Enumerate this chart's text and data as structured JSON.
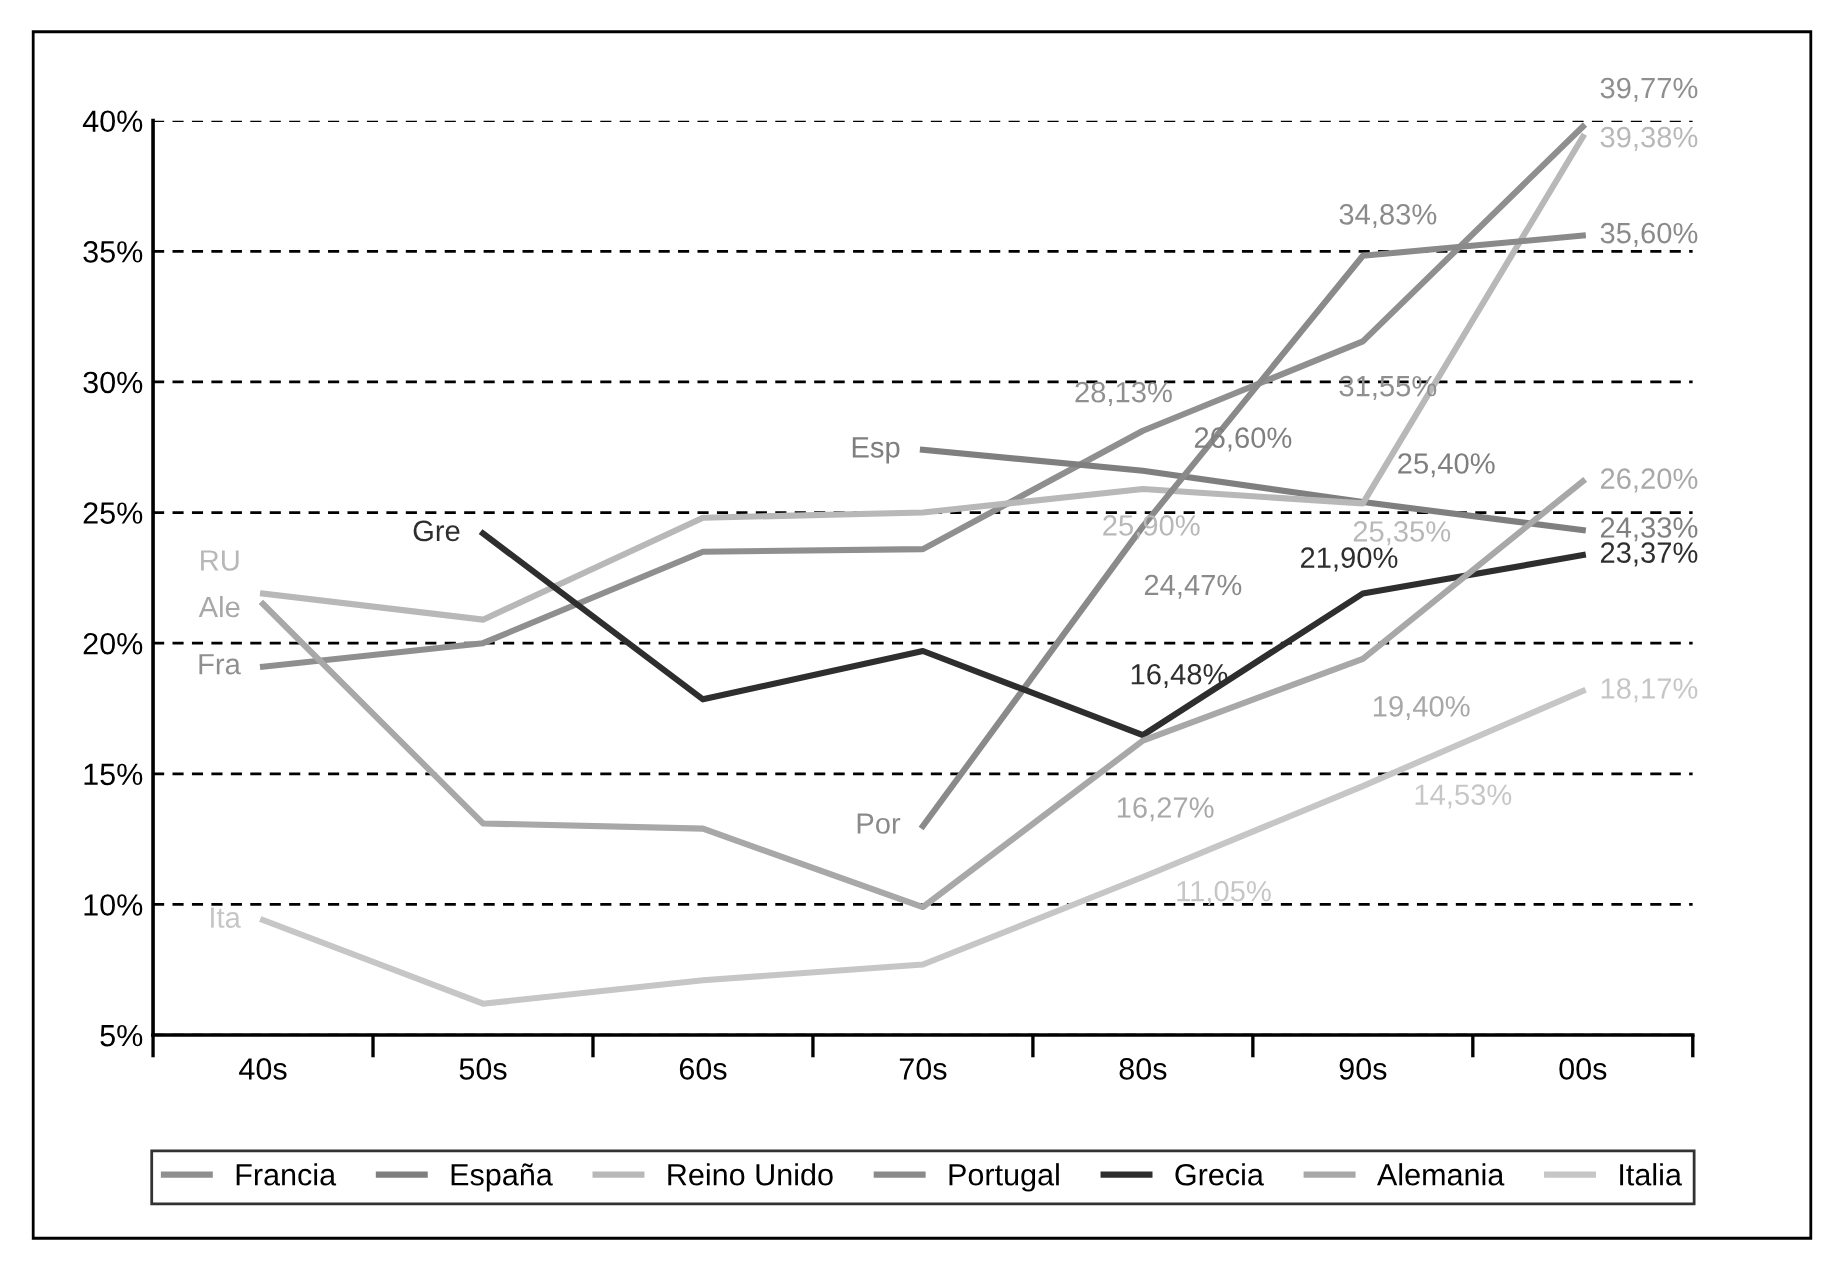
{
  "chart_data": {
    "type": "line",
    "categories": [
      "40s",
      "50s",
      "60s",
      "70s",
      "80s",
      "90s",
      "00s"
    ],
    "series": [
      {
        "name": "Francia",
        "color": "#8f8f8f",
        "values": [
          19.1,
          20.0,
          23.5,
          23.6,
          28.13,
          31.55,
          39.77
        ],
        "value_labels": [
          null,
          null,
          null,
          null,
          "28,13%",
          "31,55%",
          "39,77%"
        ]
      },
      {
        "name": "España",
        "color": "#7f7f7f",
        "values": [
          null,
          null,
          null,
          27.4,
          26.6,
          25.4,
          24.33
        ],
        "value_labels": [
          null,
          null,
          null,
          null,
          "26,60%",
          "25,40%",
          "24,33%"
        ]
      },
      {
        "name": "Reino Unido",
        "color": "#b8b8b8",
        "values": [
          21.9,
          20.9,
          24.8,
          25.0,
          25.9,
          25.35,
          39.38
        ],
        "value_labels": [
          null,
          null,
          null,
          null,
          "25,90%",
          "25,35%",
          "39,38%"
        ]
      },
      {
        "name": "Portugal",
        "color": "#8a8a8a",
        "values": [
          null,
          null,
          null,
          13.0,
          24.47,
          34.83,
          35.6
        ],
        "value_labels": [
          null,
          null,
          null,
          null,
          "24,47%",
          "34,83%",
          "35,60%"
        ]
      },
      {
        "name": "Grecia",
        "color": "#2e2e2e",
        "values": [
          null,
          24.2,
          17.85,
          19.7,
          16.48,
          21.9,
          23.37
        ],
        "value_labels": [
          null,
          null,
          null,
          null,
          "16,48%",
          "21,90%",
          "23,37%"
        ]
      },
      {
        "name": "Alemania",
        "color": "#a8a8a8",
        "values": [
          21.5,
          13.1,
          12.9,
          9.9,
          16.27,
          19.4,
          26.2
        ],
        "value_labels": [
          null,
          null,
          null,
          null,
          "16,27%",
          "19,40%",
          "26,20%"
        ]
      },
      {
        "name": "Italia",
        "color": "#c6c6c6",
        "values": [
          9.4,
          6.2,
          7.1,
          7.7,
          11.05,
          14.53,
          18.17
        ],
        "value_labels": [
          null,
          null,
          null,
          null,
          "11,05%",
          "14,53%",
          "18,17%"
        ]
      }
    ],
    "annotations": [
      {
        "text": "RU",
        "x": "40s",
        "y": 21.9
      },
      {
        "text": "Ale",
        "x": "40s",
        "y": 21.5
      },
      {
        "text": "Fra",
        "x": "40s",
        "y": 19.1
      },
      {
        "text": "Gre",
        "x": "50s",
        "y": 24.2
      },
      {
        "text": "Esp",
        "x": "70s",
        "y": 27.4
      },
      {
        "text": "Por",
        "x": "70s",
        "y": 13.0
      },
      {
        "text": "Ita",
        "x": "40s",
        "y": 9.4
      }
    ],
    "ylim": [
      5,
      40
    ],
    "yticks": [
      {
        "value": 5,
        "label": "5%"
      },
      {
        "value": 10,
        "label": "10%"
      },
      {
        "value": 15,
        "label": "15%"
      },
      {
        "value": 20,
        "label": "20%"
      },
      {
        "value": 25,
        "label": "25%"
      },
      {
        "value": 30,
        "label": "30%"
      },
      {
        "value": 35,
        "label": "35%"
      },
      {
        "value": 40,
        "label": "40%"
      }
    ],
    "grid": "y",
    "legend": "bottom",
    "marker": "none",
    "line_style": "solid"
  }
}
